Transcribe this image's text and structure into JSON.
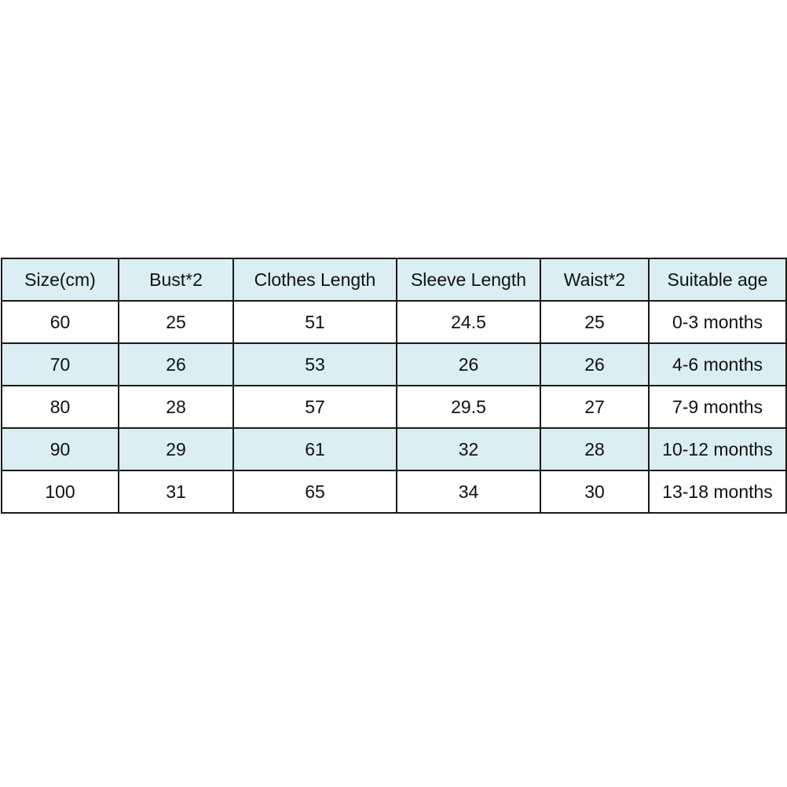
{
  "colors": {
    "header_bg": "#daeef3",
    "shaded_row_bg": "#daeef3",
    "border": "#1a1a1a"
  },
  "table": {
    "headers": [
      "Size(cm)",
      "Bust*2",
      "Clothes Length",
      "Sleeve Length",
      "Waist*2",
      "Suitable age"
    ],
    "rows": [
      [
        "60",
        "25",
        "51",
        "24.5",
        "25",
        "0-3 months"
      ],
      [
        "70",
        "26",
        "53",
        "26",
        "26",
        "4-6 months"
      ],
      [
        "80",
        "28",
        "57",
        "29.5",
        "27",
        "7-9 months"
      ],
      [
        "90",
        "29",
        "61",
        "32",
        "28",
        "10-12 months"
      ],
      [
        "100",
        "31",
        "65",
        "34",
        "30",
        "13-18 months"
      ]
    ]
  }
}
